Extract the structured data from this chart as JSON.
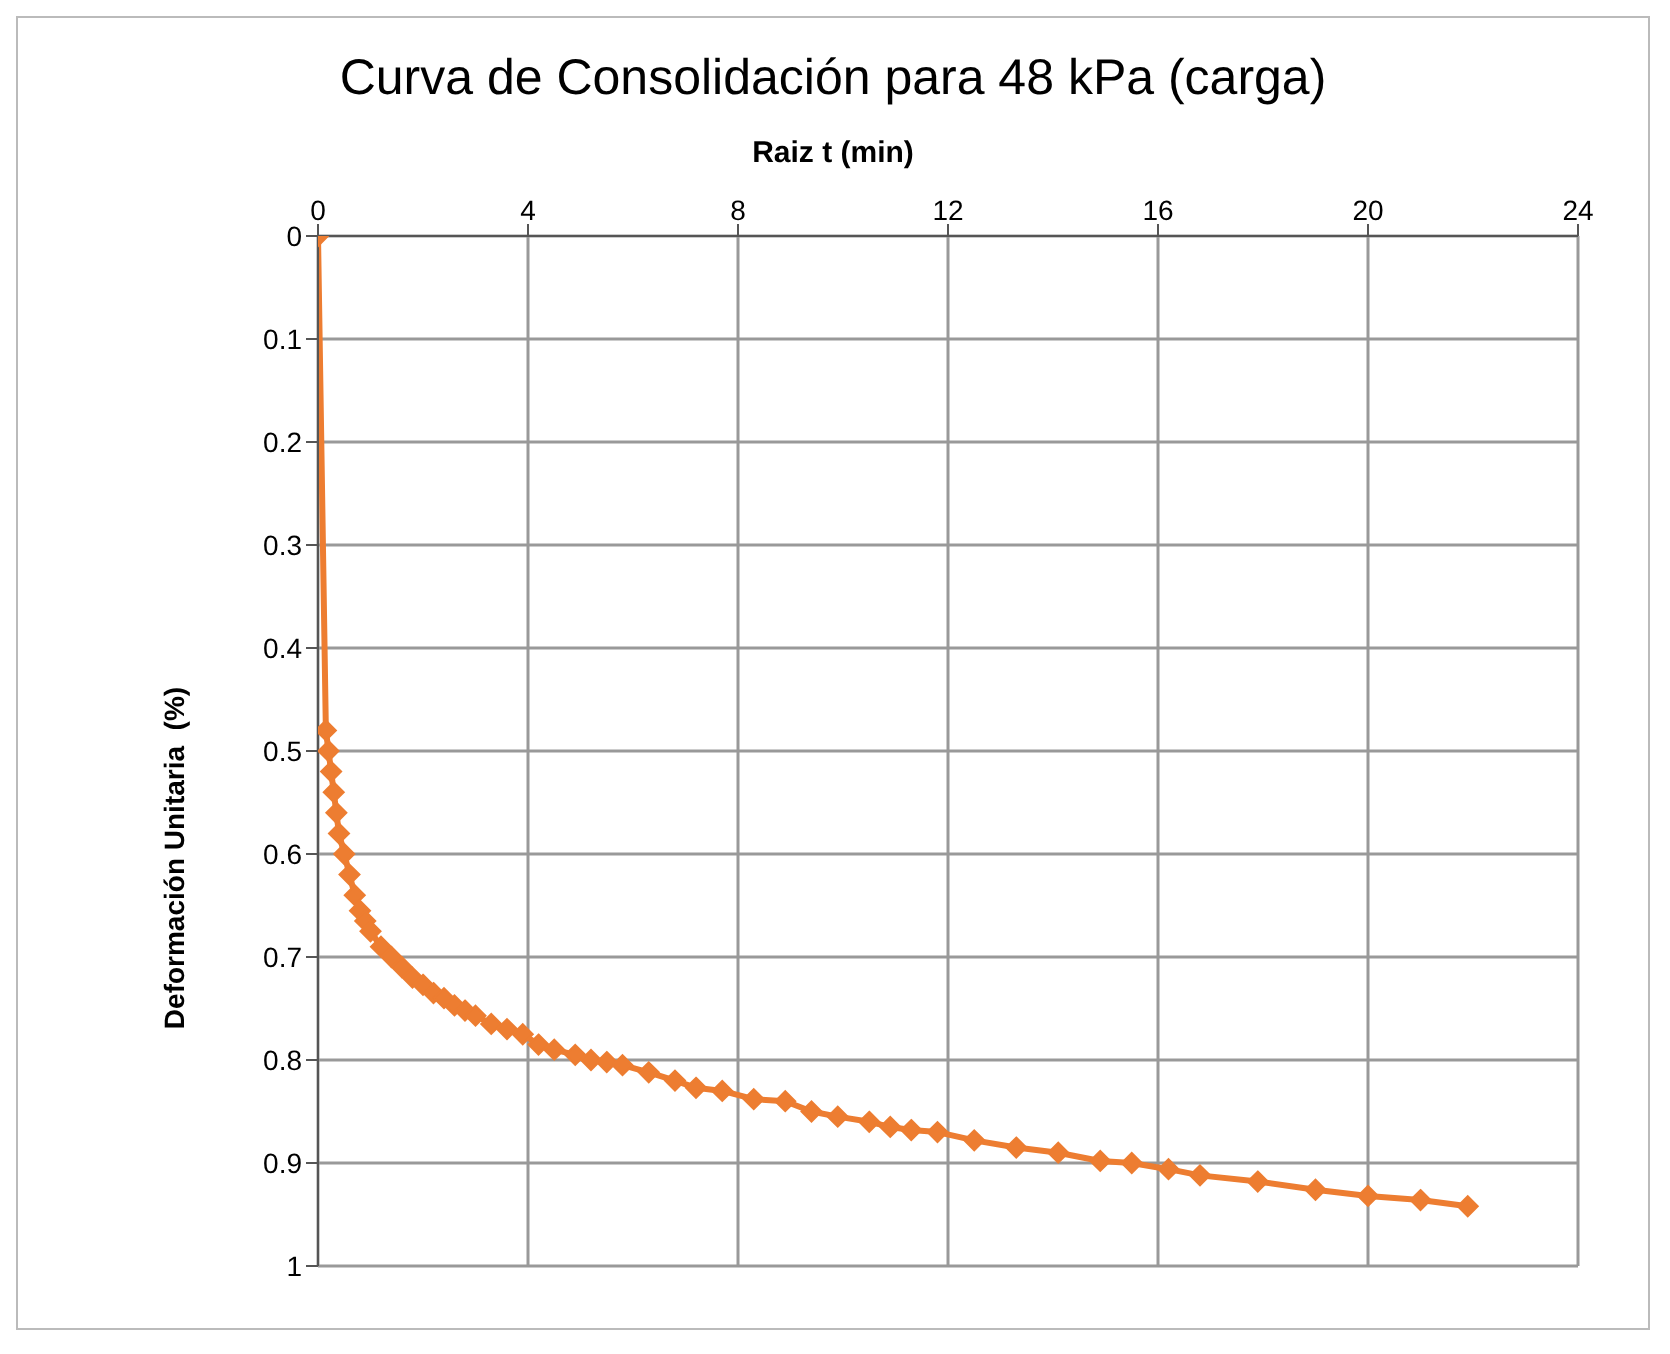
{
  "chart_data": {
    "type": "line",
    "title": "Curva de Consolidación para 48 kPa (carga)",
    "xlabel": "Raiz t (min)",
    "ylabel": "Deformación Unitaria  (%)",
    "x": [
      0,
      0.15,
      0.2,
      0.25,
      0.3,
      0.35,
      0.4,
      0.5,
      0.6,
      0.7,
      0.8,
      0.9,
      1.0,
      1.2,
      1.4,
      1.6,
      1.8,
      2.0,
      2.2,
      2.4,
      2.6,
      2.8,
      3.0,
      3.3,
      3.6,
      3.9,
      4.2,
      4.5,
      4.9,
      5.2,
      5.5,
      5.8,
      6.3,
      6.8,
      7.2,
      7.7,
      8.3,
      8.9,
      9.4,
      9.9,
      10.5,
      10.9,
      11.3,
      11.8,
      12.5,
      13.3,
      14.1,
      14.9,
      15.5,
      16.2,
      16.8,
      17.9,
      19.0,
      20.0,
      21.0,
      21.9
    ],
    "series": [
      {
        "color": "#ed7d31",
        "values": [
          0,
          0.48,
          0.5,
          0.52,
          0.54,
          0.56,
          0.58,
          0.6,
          0.62,
          0.64,
          0.655,
          0.665,
          0.675,
          0.69,
          0.7,
          0.71,
          0.72,
          0.727,
          0.735,
          0.74,
          0.747,
          0.752,
          0.757,
          0.765,
          0.77,
          0.775,
          0.785,
          0.79,
          0.795,
          0.8,
          0.802,
          0.805,
          0.812,
          0.82,
          0.827,
          0.83,
          0.838,
          0.84,
          0.85,
          0.855,
          0.86,
          0.865,
          0.868,
          0.87,
          0.878,
          0.885,
          0.89,
          0.898,
          0.9,
          0.906,
          0.912,
          0.918,
          0.926,
          0.932,
          0.936,
          0.942
        ]
      }
    ],
    "xlim": [
      0,
      24
    ],
    "xticks": [
      0,
      4,
      8,
      12,
      16,
      20,
      24
    ],
    "ylim": [
      1,
      0
    ],
    "yticks": [
      0,
      0.1,
      0.2,
      0.3,
      0.4,
      0.5,
      0.6,
      0.7,
      0.8,
      0.9,
      1
    ],
    "grid": true,
    "marker": "diamond",
    "line_style": "solid"
  }
}
